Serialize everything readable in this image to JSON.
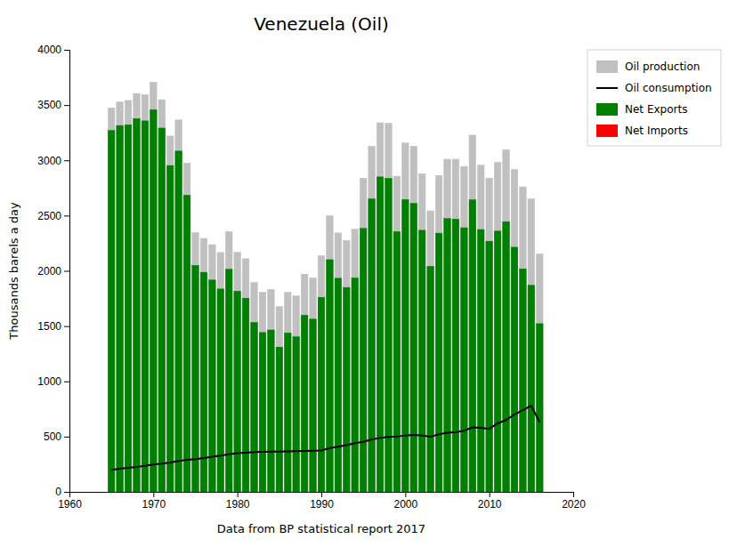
{
  "chart_data": {
    "type": "bar",
    "title": "Venezuela (Oil)",
    "x_label": "Data from BP statistical report 2017",
    "y_label": "Thousands barels a day",
    "x": [
      1965,
      1966,
      1967,
      1968,
      1969,
      1970,
      1971,
      1972,
      1973,
      1974,
      1975,
      1976,
      1977,
      1978,
      1979,
      1980,
      1981,
      1982,
      1983,
      1984,
      1985,
      1986,
      1987,
      1988,
      1989,
      1990,
      1991,
      1992,
      1993,
      1994,
      1995,
      1996,
      1997,
      1998,
      1999,
      2000,
      2001,
      2002,
      2003,
      2004,
      2005,
      2006,
      2007,
      2008,
      2009,
      2010,
      2011,
      2012,
      2013,
      2014,
      2015,
      2016
    ],
    "series": [
      {
        "name": "Oil production",
        "type": "bar",
        "color": "#c0c0c0",
        "values": [
          3473,
          3528,
          3542,
          3605,
          3594,
          3708,
          3549,
          3220,
          3366,
          2976,
          2346,
          2294,
          2237,
          2166,
          2356,
          2168,
          2110,
          1895,
          1806,
          1832,
          1677,
          1806,
          1773,
          1970,
          1937,
          2137,
          2499,
          2343,
          2275,
          2378,
          2839,
          3128,
          3340,
          3335,
          2857,
          3157,
          3128,
          2879,
          2543,
          2863,
          3010,
          3010,
          2945,
          3228,
          2956,
          2840,
          2982,
          3097,
          2916,
          2760,
          2651,
          2154
        ]
      },
      {
        "name": "Oil consumption",
        "type": "line",
        "color": "#000000",
        "values": [
          200,
          210,
          218,
          225,
          235,
          248,
          255,
          265,
          280,
          290,
          295,
          305,
          318,
          328,
          340,
          350,
          355,
          360,
          362,
          365,
          365,
          366,
          368,
          370,
          372,
          375,
          396,
          408,
          423,
          440,
          453,
          475,
          488,
          497,
          500,
          510,
          515,
          510,
          500,
          520,
          535,
          540,
          553,
          583,
          580,
          570,
          620,
          650,
          700,
          740,
          780,
          630
        ]
      },
      {
        "name": "Net Exports",
        "type": "bar",
        "color": "#008000",
        "values": [
          3270,
          3315,
          3321,
          3378,
          3357,
          3458,
          3292,
          2953,
          3084,
          2684,
          2049,
          1987,
          1917,
          1836,
          2014,
          1816,
          1753,
          1533,
          1442,
          1465,
          1310,
          1438,
          1403,
          1598,
          1563,
          1760,
          2101,
          1933,
          1850,
          1936,
          2384,
          2651,
          2850,
          2836,
          2355,
          2645,
          2611,
          2367,
          2041,
          2341,
          2473,
          2468,
          2390,
          2643,
          2374,
          2268,
          2360,
          2445,
          2214,
          2018,
          1869,
          1522
        ]
      },
      {
        "name": "Net Imports",
        "type": "bar",
        "color": "#ff0000",
        "values": [
          0,
          0,
          0,
          0,
          0,
          0,
          0,
          0,
          0,
          0,
          0,
          0,
          0,
          0,
          0,
          0,
          0,
          0,
          0,
          0,
          0,
          0,
          0,
          0,
          0,
          0,
          0,
          0,
          0,
          0,
          0,
          0,
          0,
          0,
          0,
          0,
          0,
          0,
          0,
          0,
          0,
          0,
          0,
          0,
          0,
          0,
          0,
          0,
          0,
          0,
          0,
          0
        ]
      }
    ],
    "xlim": [
      1960,
      2020
    ],
    "xticks": [
      1960,
      1970,
      1980,
      1990,
      2000,
      2010,
      2020
    ],
    "ylim": [
      0,
      4000
    ],
    "yticks": [
      0,
      500,
      1000,
      1500,
      2000,
      2500,
      3000,
      3500,
      4000
    ],
    "grid": false,
    "legend": "upper right"
  }
}
